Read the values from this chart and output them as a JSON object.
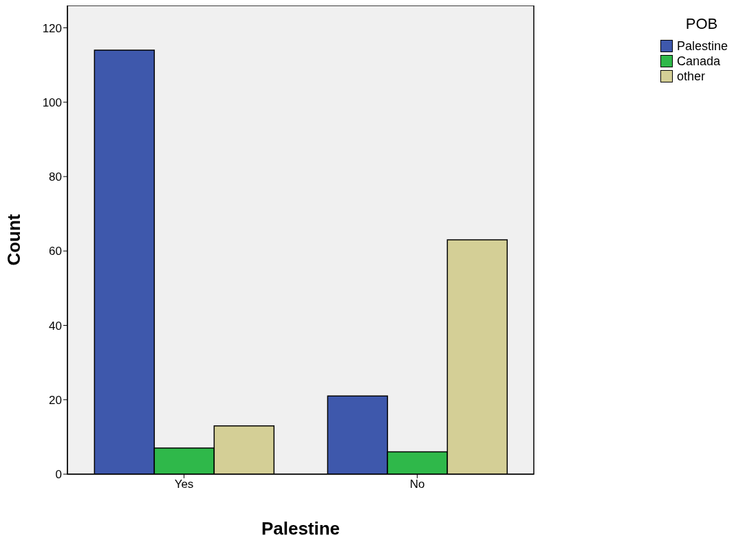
{
  "chart_data": {
    "type": "bar",
    "xlabel": "Palestine",
    "ylabel": "Count",
    "legend_title": "POB",
    "categories": [
      "Yes",
      "No"
    ],
    "series": [
      {
        "name": "Palestine",
        "color": "#3e58ac",
        "values": [
          114,
          21
        ]
      },
      {
        "name": "Canada",
        "color": "#2fb84a",
        "values": [
          7,
          6
        ]
      },
      {
        "name": "other",
        "color": "#d4cf96",
        "values": [
          13,
          63
        ]
      }
    ],
    "ylim": [
      0,
      126
    ],
    "yticks": [
      0,
      20,
      40,
      60,
      80,
      100,
      120
    ],
    "grid": false,
    "legend": "top right"
  }
}
